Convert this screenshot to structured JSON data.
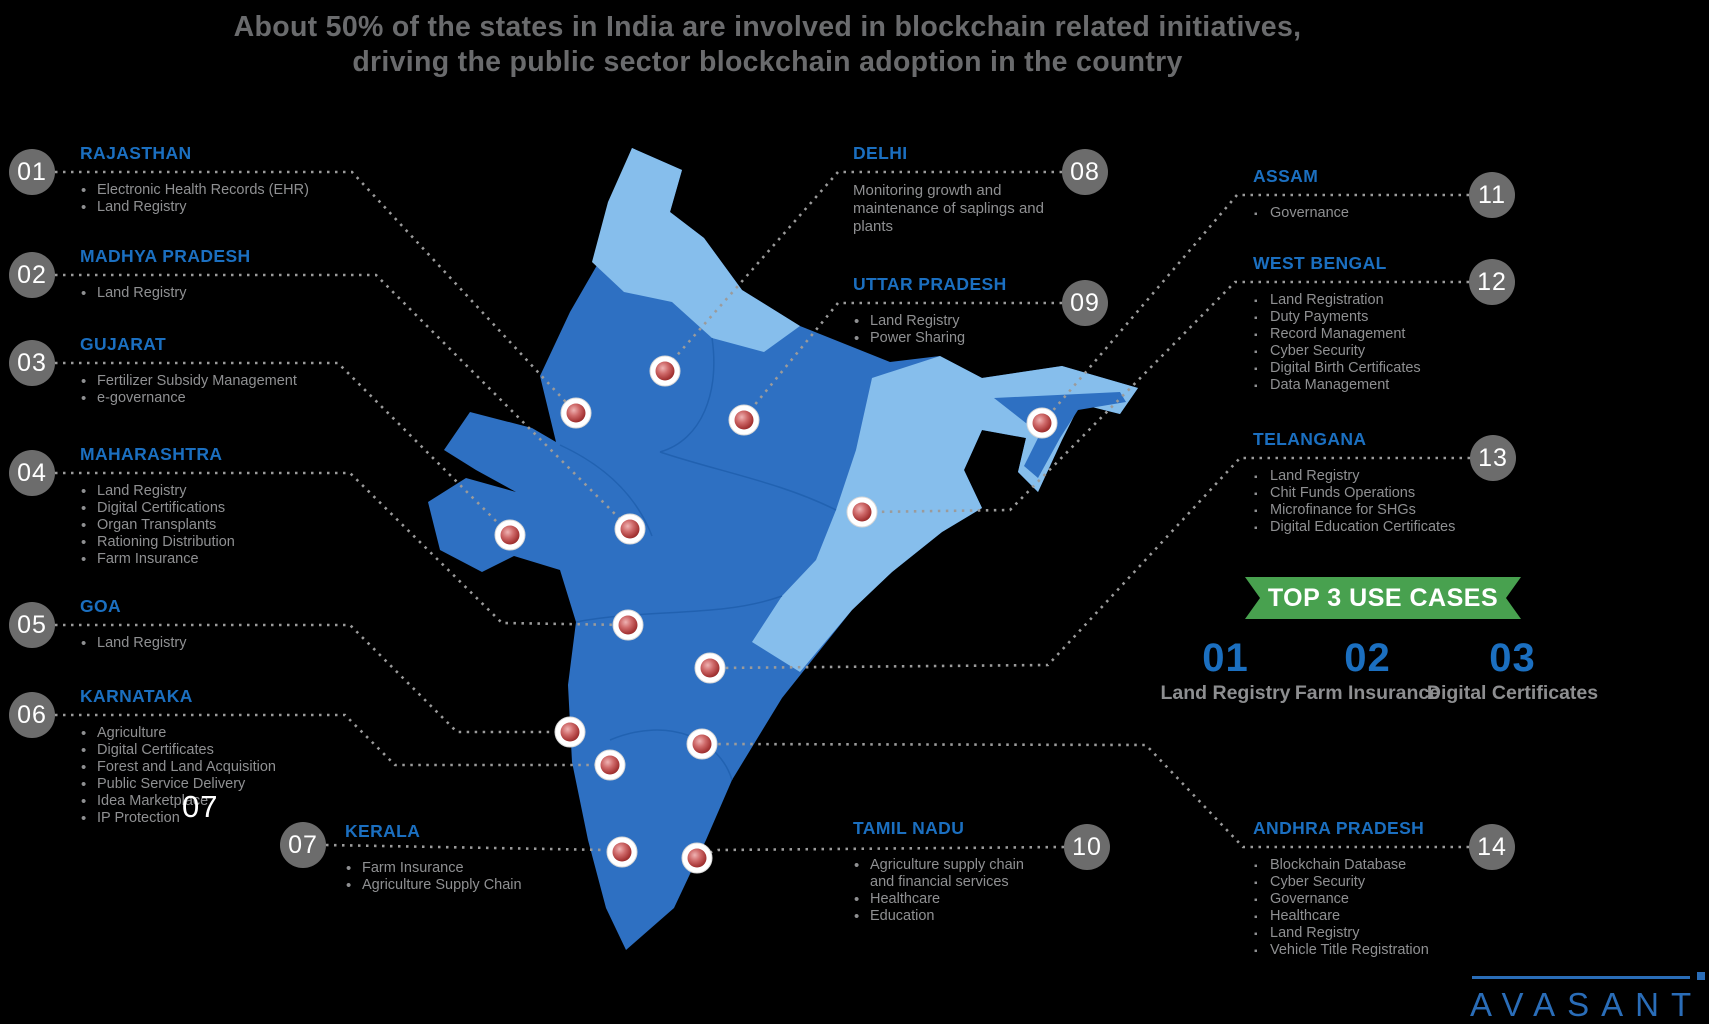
{
  "title": {
    "line1": "About 50% of the states in India are involved in blockchain related initiatives,",
    "line2": "driving the public sector blockchain adoption in the country"
  },
  "states": [
    {
      "id": "01",
      "name": "RAJASTHAN",
      "items": [
        "Electronic Health Records (EHR)",
        "Land Registry"
      ]
    },
    {
      "id": "02",
      "name": "MADHYA PRADESH",
      "items": [
        "Land Registry"
      ]
    },
    {
      "id": "03",
      "name": "GUJARAT",
      "items": [
        "Fertilizer Subsidy Management",
        "e-governance"
      ]
    },
    {
      "id": "04",
      "name": "MAHARASHTRA",
      "items": [
        "Land Registry",
        "Digital Certifications",
        "Organ Transplants",
        "Rationing Distribution",
        "Farm Insurance"
      ]
    },
    {
      "id": "05",
      "name": "GOA",
      "items": [
        "Land Registry"
      ]
    },
    {
      "id": "06",
      "name": "KARNATAKA",
      "items": [
        "Agriculture",
        "Digital Certificates",
        "Forest and Land Acquisition",
        "Public Service Delivery",
        "Idea Marketplace",
        "IP Protection"
      ]
    },
    {
      "id": "07",
      "name": "KERALA",
      "items": [
        "Farm Insurance",
        "Agriculture Supply Chain"
      ]
    },
    {
      "id": "08",
      "name": "DELHI",
      "paragraph": "Monitoring growth and maintenance of saplings and plants"
    },
    {
      "id": "09",
      "name": "UTTAR PRADESH",
      "items": [
        "Land Registry",
        "Power Sharing"
      ]
    },
    {
      "id": "10",
      "name": "TAMIL NADU",
      "items": [
        "Agriculture supply chain and financial services",
        "Healthcare",
        "Education"
      ]
    },
    {
      "id": "11",
      "name": "ASSAM",
      "items": [
        "Governance"
      ]
    },
    {
      "id": "12",
      "name": "WEST BENGAL",
      "items": [
        "Land Registration",
        "Duty Payments",
        "Record Management",
        "Cyber Security",
        "Digital Birth Certificates",
        "Data Management"
      ]
    },
    {
      "id": "13",
      "name": "TELANGANA",
      "items": [
        "Land Registry",
        "Chit Funds Operations",
        "Microfinance for SHGs",
        "Digital Education Certificates"
      ]
    },
    {
      "id": "14",
      "name": "ANDHRA PRADESH",
      "items": [
        "Blockchain Database",
        "Cyber Security",
        "Governance",
        "Healthcare",
        "Land Registry",
        "Vehicle Title Registration"
      ]
    }
  ],
  "top_use_cases": {
    "banner": "TOP 3 USE CASES",
    "cases": [
      {
        "rank": "01",
        "label": "Land Registry"
      },
      {
        "rank": "02",
        "label": "Farm Insurance"
      },
      {
        "rank": "03",
        "label": "Digital Certificates"
      }
    ]
  },
  "stray_label": "07",
  "logo": {
    "brand": "AVASANT"
  },
  "colors": {
    "background": "#000000",
    "title_gray": "#6A6B6D",
    "state_name_blue": "#1B6FC0",
    "bullet_gray": "#8F9092",
    "badge_gray": "#6C6C6C",
    "map_dark_blue": "#2E70C2",
    "map_light_blue": "#86BEEC",
    "ribbon_green": "#48A14F",
    "pin_red": "#B23A3A",
    "logo_blue": "#2A6DB8"
  }
}
